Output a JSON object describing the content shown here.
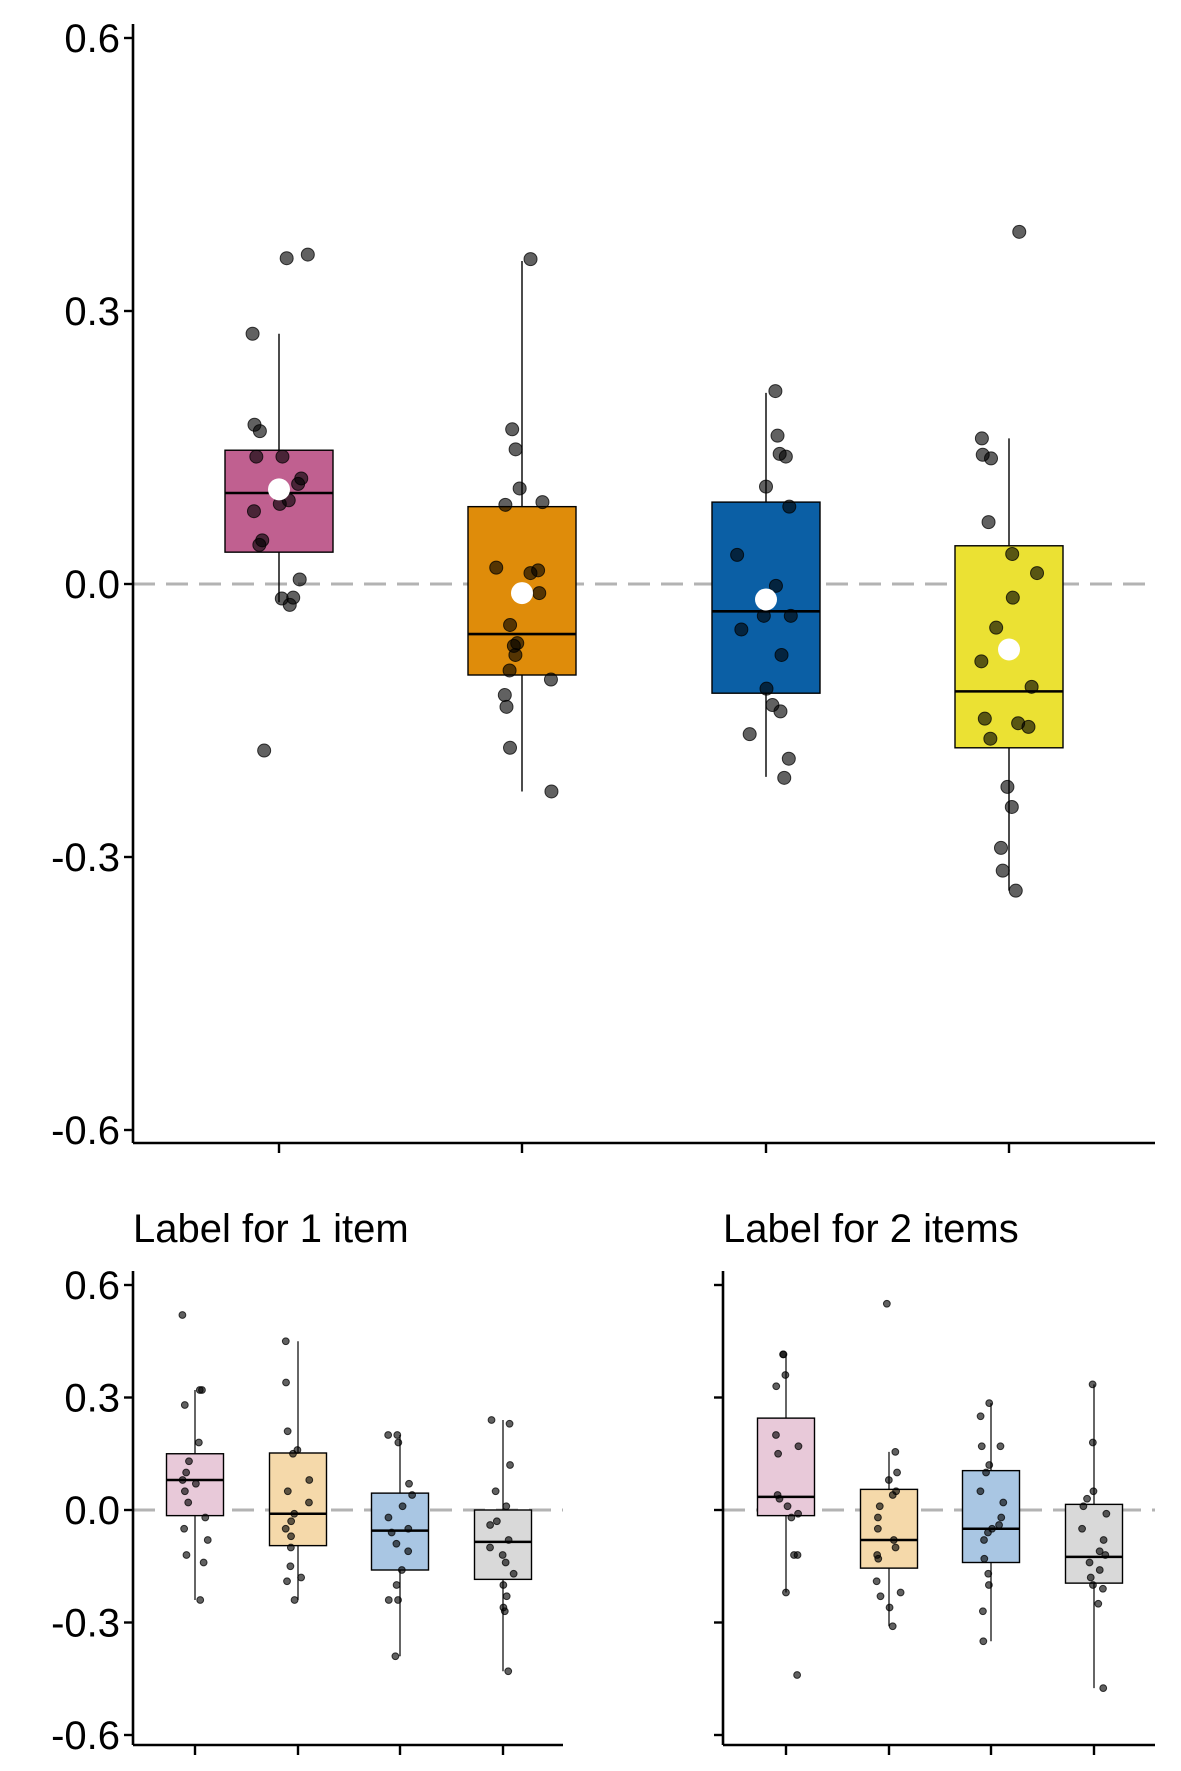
{
  "chart_data": [
    {
      "type": "box",
      "panel": "main",
      "title": "",
      "xlabel": "",
      "ylabel": "",
      "ylim": [
        -0.6,
        0.6
      ],
      "yticks": [
        -0.6,
        -0.3,
        0.0,
        0.3,
        0.6
      ],
      "ytick_labels": [
        "-0.6",
        "-0.3",
        "0.0",
        "0.3",
        "0.6"
      ],
      "reference_line": 0.0,
      "groups": [
        {
          "color": "#c06090",
          "median": 0.1,
          "q1": 0.035,
          "q3": 0.147,
          "whisker_low": -0.02,
          "whisker_high": 0.275,
          "mean": 0.104,
          "points": [
            0.358,
            0.362,
            0.275,
            0.175,
            0.168,
            0.14,
            0.14,
            0.116,
            0.11,
            0.092,
            0.088,
            0.08,
            0.048,
            0.043,
            0.005,
            -0.015,
            -0.016,
            -0.023,
            -0.183
          ]
        },
        {
          "color": "#df8c0a",
          "median": -0.055,
          "q1": -0.1,
          "q3": 0.085,
          "whisker_low": -0.228,
          "whisker_high": 0.355,
          "mean": -0.01,
          "points": [
            0.357,
            0.17,
            0.148,
            0.105,
            0.09,
            0.087,
            0.018,
            0.015,
            0.012,
            -0.01,
            -0.045,
            -0.065,
            -0.068,
            -0.078,
            -0.095,
            -0.105,
            -0.122,
            -0.135,
            -0.18,
            -0.228
          ]
        },
        {
          "color": "#0b5fa5",
          "median": -0.03,
          "q1": -0.12,
          "q3": 0.09,
          "whisker_low": -0.212,
          "whisker_high": 0.21,
          "mean": -0.017,
          "points": [
            0.212,
            0.163,
            0.143,
            0.14,
            0.107,
            0.085,
            0.032,
            -0.002,
            -0.035,
            -0.035,
            -0.05,
            -0.078,
            -0.115,
            -0.133,
            -0.14,
            -0.165,
            -0.192,
            -0.213
          ]
        },
        {
          "color": "#ebe133",
          "median": -0.118,
          "q1": -0.18,
          "q3": 0.042,
          "whisker_low": -0.337,
          "whisker_high": 0.16,
          "mean": -0.072,
          "points": [
            0.387,
            0.16,
            0.142,
            0.138,
            0.068,
            0.033,
            0.012,
            -0.015,
            -0.048,
            -0.085,
            -0.113,
            -0.148,
            -0.153,
            -0.157,
            -0.17,
            -0.223,
            -0.245,
            -0.29,
            -0.315,
            -0.337
          ]
        }
      ]
    },
    {
      "type": "box",
      "panel": "left",
      "title": "Label for 1 item",
      "xlabel": "",
      "ylabel": "",
      "ylim": [
        -0.6,
        0.6
      ],
      "yticks": [
        -0.6,
        -0.3,
        0.0,
        0.3,
        0.6
      ],
      "ytick_labels": [
        "-0.6",
        "-0.3",
        "0.0",
        "0.3",
        "0.6"
      ],
      "reference_line": 0.0,
      "groups": [
        {
          "color": "#e8c9d9",
          "median": 0.08,
          "q1": -0.015,
          "q3": 0.15,
          "whisker_low": -0.24,
          "whisker_high": 0.32,
          "points": [
            0.52,
            0.32,
            0.32,
            0.28,
            0.18,
            0.13,
            0.1,
            0.08,
            0.07,
            0.05,
            0.02,
            -0.02,
            -0.05,
            -0.08,
            -0.12,
            -0.14,
            -0.24
          ]
        },
        {
          "color": "#f5d9aa",
          "median": -0.01,
          "q1": -0.095,
          "q3": 0.152,
          "whisker_low": -0.24,
          "whisker_high": 0.45,
          "points": [
            0.45,
            0.34,
            0.21,
            0.16,
            0.15,
            0.08,
            0.05,
            0.02,
            -0.01,
            -0.03,
            -0.05,
            -0.07,
            -0.1,
            -0.15,
            -0.18,
            -0.19,
            -0.24
          ]
        },
        {
          "color": "#a9c6e3",
          "median": -0.055,
          "q1": -0.16,
          "q3": 0.045,
          "whisker_low": -0.39,
          "whisker_high": 0.2,
          "points": [
            0.2,
            0.2,
            0.18,
            0.07,
            0.04,
            0.01,
            -0.02,
            -0.05,
            -0.06,
            -0.09,
            -0.11,
            -0.16,
            -0.2,
            -0.24,
            -0.24,
            -0.39
          ]
        },
        {
          "color": "#d9d9d9",
          "median": -0.085,
          "q1": -0.185,
          "q3": 0.0,
          "whisker_low": -0.43,
          "whisker_high": 0.24,
          "points": [
            0.24,
            0.23,
            0.12,
            0.05,
            0.01,
            -0.03,
            -0.04,
            -0.08,
            -0.1,
            -0.12,
            -0.14,
            -0.17,
            -0.2,
            -0.23,
            -0.26,
            -0.27,
            -0.43
          ]
        }
      ]
    },
    {
      "type": "box",
      "panel": "right",
      "title": "Label for 2 items",
      "xlabel": "",
      "ylabel": "",
      "ylim": [
        -0.6,
        0.6
      ],
      "yticks": [
        -0.6,
        -0.3,
        0.0,
        0.3,
        0.6
      ],
      "ytick_labels": [
        "",
        "",
        "",
        "",
        ""
      ],
      "reference_line": 0.0,
      "groups": [
        {
          "color": "#e8c9d9",
          "median": 0.035,
          "q1": -0.015,
          "q3": 0.245,
          "whisker_low": -0.22,
          "whisker_high": 0.415,
          "points": [
            0.415,
            0.415,
            0.36,
            0.33,
            0.2,
            0.17,
            0.15,
            0.04,
            0.03,
            0.01,
            -0.01,
            -0.02,
            -0.12,
            -0.12,
            -0.22,
            -0.44
          ]
        },
        {
          "color": "#f5d9aa",
          "median": -0.08,
          "q1": -0.155,
          "q3": 0.055,
          "whisker_low": -0.31,
          "whisker_high": 0.155,
          "points": [
            0.55,
            0.155,
            0.1,
            0.08,
            0.05,
            0.04,
            0.01,
            -0.02,
            -0.05,
            -0.08,
            -0.1,
            -0.12,
            -0.13,
            -0.19,
            -0.22,
            -0.23,
            -0.26,
            -0.31
          ]
        },
        {
          "color": "#a9c6e3",
          "median": -0.05,
          "q1": -0.14,
          "q3": 0.105,
          "whisker_low": -0.35,
          "whisker_high": 0.285,
          "points": [
            0.285,
            0.25,
            0.17,
            0.17,
            0.12,
            0.1,
            0.05,
            0.02,
            -0.02,
            -0.04,
            -0.05,
            -0.06,
            -0.08,
            -0.13,
            -0.17,
            -0.2,
            -0.27,
            -0.35
          ]
        },
        {
          "color": "#d9d9d9",
          "median": -0.125,
          "q1": -0.195,
          "q3": 0.015,
          "whisker_low": -0.475,
          "whisker_high": 0.335,
          "points": [
            0.335,
            0.18,
            0.05,
            0.03,
            0.01,
            -0.01,
            -0.05,
            -0.08,
            -0.11,
            -0.12,
            -0.14,
            -0.16,
            -0.18,
            -0.2,
            -0.21,
            -0.25,
            -0.475
          ]
        }
      ]
    }
  ]
}
